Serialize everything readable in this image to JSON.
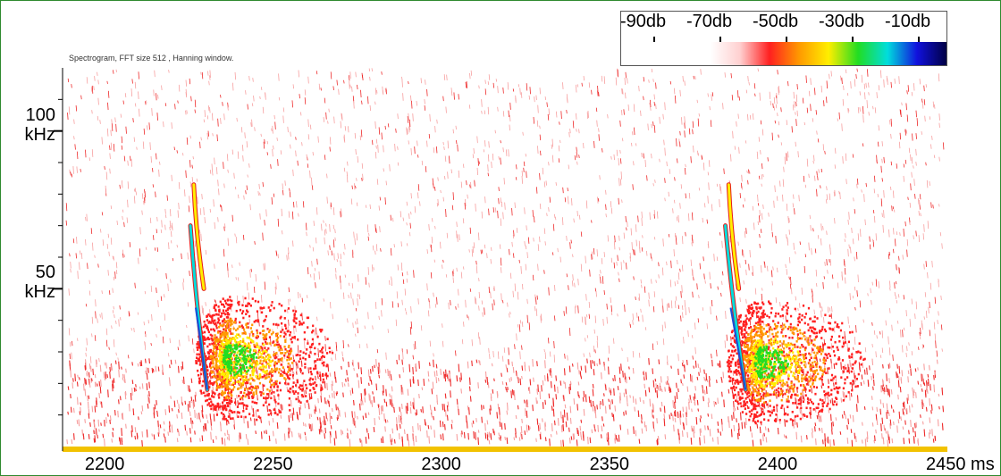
{
  "chart_data": {
    "type": "heatmap",
    "title": "Spectrogram, FFT size 512 , Hanning window.",
    "x_unit": "ms",
    "x_ticks": [
      2200,
      2250,
      2300,
      2350,
      2400,
      2450
    ],
    "x_tick_labels": [
      "2200",
      "2250",
      "2300",
      "2350",
      "2400",
      "2450 ms"
    ],
    "xlim": [
      2187,
      2450
    ],
    "ylim": [
      0,
      120
    ],
    "y_unit": "kHz",
    "y_ticks": [
      {
        "value": 100,
        "label": "100",
        "unit": "kHz"
      },
      {
        "value": 50,
        "label": "50",
        "unit": "kHz"
      }
    ],
    "y_minor_tick_step": 10,
    "color_scale": {
      "labels": [
        "-90db",
        "-70db",
        "-50db",
        "-30db",
        "-10db"
      ],
      "values_db": [
        -90,
        -70,
        -50,
        -30,
        -10
      ],
      "range_db": [
        -100,
        0
      ],
      "colors": [
        "#ffffff",
        "#ffd0d0",
        "#ff2020",
        "#ff9900",
        "#ffee00",
        "#22dd22",
        "#00dddd",
        "#1111dd",
        "#000044"
      ]
    },
    "calls": [
      {
        "start_ms": 2225,
        "end_ms": 2230,
        "f_start_khz": 70,
        "f_end_khz": 18,
        "peak_db": -25
      },
      {
        "start_ms": 2226,
        "end_ms": 2229,
        "f_start_khz": 83,
        "f_end_khz": 50,
        "peak_db": -50
      },
      {
        "start_ms": 2384,
        "end_ms": 2390,
        "f_start_khz": 70,
        "f_end_khz": 18,
        "peak_db": -25
      },
      {
        "start_ms": 2385,
        "end_ms": 2388,
        "f_start_khz": 83,
        "f_end_khz": 50,
        "peak_db": -50
      }
    ],
    "energy_blobs": [
      {
        "center_ms": 2237,
        "center_khz": 28,
        "peak_db": -40
      },
      {
        "center_ms": 2395,
        "center_khz": 27,
        "peak_db": -40
      }
    ],
    "noise_floor_db": -75
  }
}
